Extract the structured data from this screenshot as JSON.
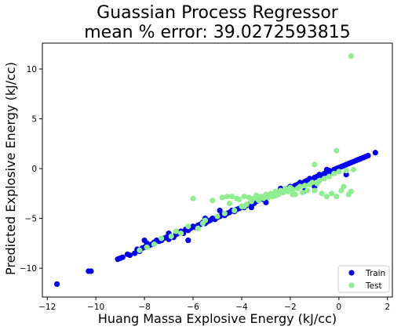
{
  "chart_data": {
    "type": "scatter",
    "title": [
      "Guassian Process Regressor",
      "mean % error: 39.0272593815"
    ],
    "xlabel": "Huang Massa Explosive Energy (kJ/cc)",
    "ylabel": "Predicted Explosive Energy (kJ/cc)",
    "xlim": [
      -12.2,
      2.2
    ],
    "ylim": [
      -12.9,
      12.6
    ],
    "xticks": [
      -12,
      -10,
      -8,
      -6,
      -4,
      -2,
      0,
      2
    ],
    "yticks": [
      -10,
      -5,
      0,
      5,
      10
    ],
    "grid": false,
    "legend_position": "lower-right",
    "series": [
      {
        "name": "Train",
        "color": "#0000ee",
        "points": [
          [
            -11.6,
            -11.6
          ],
          [
            -10.3,
            -10.3
          ],
          [
            -10.2,
            -10.3
          ],
          [
            -9.1,
            -9.1
          ],
          [
            -9.0,
            -9.0
          ],
          [
            -8.9,
            -8.9
          ],
          [
            -8.7,
            -8.6
          ],
          [
            -8.6,
            -8.7
          ],
          [
            -8.4,
            -8.5
          ],
          [
            -8.3,
            -8.1
          ],
          [
            -8.2,
            -8.3
          ],
          [
            -8.1,
            -8.0
          ],
          [
            -8.0,
            -7.9
          ],
          [
            -8.0,
            -7.2
          ],
          [
            -7.9,
            -7.5
          ],
          [
            -7.8,
            -7.7
          ],
          [
            -7.7,
            -7.6
          ],
          [
            -7.6,
            -7.4
          ],
          [
            -7.5,
            -7.2
          ],
          [
            -7.4,
            -7.3
          ],
          [
            -7.3,
            -7.2
          ],
          [
            -7.2,
            -7.0
          ],
          [
            -7.1,
            -6.9
          ],
          [
            -7.0,
            -7.1
          ],
          [
            -6.9,
            -6.8
          ],
          [
            -6.8,
            -6.9
          ],
          [
            -6.7,
            -6.6
          ],
          [
            -6.6,
            -6.5
          ],
          [
            -6.5,
            -6.3
          ],
          [
            -6.4,
            -6.5
          ],
          [
            -6.3,
            -6.1
          ],
          [
            -6.2,
            -6.2
          ],
          [
            -6.1,
            -6.0
          ],
          [
            -6.0,
            -5.8
          ],
          [
            -5.9,
            -5.9
          ],
          [
            -5.8,
            -5.7
          ],
          [
            -5.7,
            -5.6
          ],
          [
            -5.6,
            -5.4
          ],
          [
            -5.5,
            -5.5
          ],
          [
            -5.4,
            -5.3
          ],
          [
            -5.3,
            -5.2
          ],
          [
            -5.2,
            -5.0
          ],
          [
            -5.1,
            -5.1
          ],
          [
            -5.0,
            -4.9
          ],
          [
            -4.9,
            -4.8
          ],
          [
            -4.8,
            -4.6
          ],
          [
            -4.7,
            -4.7
          ],
          [
            -4.6,
            -4.5
          ],
          [
            -4.5,
            -4.4
          ],
          [
            -4.4,
            -4.2
          ],
          [
            -4.3,
            -4.3
          ],
          [
            -4.2,
            -4.1
          ],
          [
            -4.1,
            -4.0
          ],
          [
            -4.0,
            -3.8
          ],
          [
            -3.9,
            -3.9
          ],
          [
            -3.8,
            -3.7
          ],
          [
            -3.7,
            -3.6
          ],
          [
            -3.6,
            -3.4
          ],
          [
            -3.5,
            -3.5
          ],
          [
            -3.4,
            -3.3
          ],
          [
            -3.3,
            -3.2
          ],
          [
            -3.2,
            -3.0
          ],
          [
            -3.1,
            -3.1
          ],
          [
            -3.0,
            -2.9
          ],
          [
            -2.9,
            -2.8
          ],
          [
            -2.8,
            -2.6
          ],
          [
            -2.7,
            -2.7
          ],
          [
            -2.6,
            -2.5
          ],
          [
            -2.5,
            -2.4
          ],
          [
            -2.4,
            -2.2
          ],
          [
            -2.3,
            -2.3
          ],
          [
            -2.2,
            -2.1
          ],
          [
            -2.1,
            -2.0
          ],
          [
            -2.0,
            -1.8
          ],
          [
            -1.9,
            -1.9
          ],
          [
            -1.8,
            -1.7
          ],
          [
            -1.7,
            -1.6
          ],
          [
            -1.6,
            -1.4
          ],
          [
            -1.5,
            -1.5
          ],
          [
            -1.4,
            -1.3
          ],
          [
            -1.3,
            -1.2
          ],
          [
            -1.2,
            -1.0
          ],
          [
            -1.1,
            -1.1
          ],
          [
            -1.0,
            -0.9
          ],
          [
            -0.9,
            -0.8
          ],
          [
            -0.8,
            -0.6
          ],
          [
            -0.7,
            -0.7
          ],
          [
            -0.6,
            -0.5
          ],
          [
            -0.5,
            -0.4
          ],
          [
            -0.4,
            -0.2
          ],
          [
            -0.3,
            -0.3
          ],
          [
            -0.2,
            -0.1
          ],
          [
            -0.1,
            0.0
          ],
          [
            0.0,
            0.1
          ],
          [
            0.1,
            0.2
          ],
          [
            0.2,
            0.3
          ],
          [
            0.3,
            0.4
          ],
          [
            0.4,
            0.5
          ],
          [
            0.5,
            0.6
          ],
          [
            0.6,
            0.7
          ],
          [
            0.7,
            0.8
          ],
          [
            0.8,
            0.9
          ],
          [
            0.9,
            1.0
          ],
          [
            1.0,
            1.1
          ],
          [
            1.1,
            1.2
          ],
          [
            1.2,
            1.3
          ],
          [
            1.5,
            1.6
          ],
          [
            -6.2,
            -7.2
          ],
          [
            -7.0,
            -6.5
          ],
          [
            -5.5,
            -5.0
          ],
          [
            -3.6,
            -3.9
          ],
          [
            -2.4,
            -2.0
          ],
          [
            -1.4,
            -2.2
          ],
          [
            -1.0,
            -1.8
          ],
          [
            0.3,
            -0.6
          ],
          [
            -4.9,
            -4.2
          ],
          [
            -3.0,
            -3.4
          ],
          [
            -0.5,
            -0.1
          ]
        ]
      },
      {
        "name": "Test",
        "color": "#90ee90",
        "points": [
          [
            0.5,
            11.3
          ],
          [
            -0.1,
            1.8
          ],
          [
            -1.0,
            0.4
          ],
          [
            -8.2,
            -8.2
          ],
          [
            -7.9,
            -7.9
          ],
          [
            -7.3,
            -7.0
          ],
          [
            -6.7,
            -6.3
          ],
          [
            -6.2,
            -5.8
          ],
          [
            -6.0,
            -3.0
          ],
          [
            -5.8,
            -6.0
          ],
          [
            -5.5,
            -5.2
          ],
          [
            -5.2,
            -3.2
          ],
          [
            -5.0,
            -4.8
          ],
          [
            -4.8,
            -2.9
          ],
          [
            -4.7,
            -4.5
          ],
          [
            -4.6,
            -2.8
          ],
          [
            -4.5,
            -3.5
          ],
          [
            -4.4,
            -2.8
          ],
          [
            -4.3,
            -4.2
          ],
          [
            -4.2,
            -3.0
          ],
          [
            -4.0,
            -3.8
          ],
          [
            -3.9,
            -2.8
          ],
          [
            -3.8,
            -3.6
          ],
          [
            -3.7,
            -2.9
          ],
          [
            -3.6,
            -3.3
          ],
          [
            -3.5,
            -3.0
          ],
          [
            -3.4,
            -2.7
          ],
          [
            -3.3,
            -3.2
          ],
          [
            -3.2,
            -2.8
          ],
          [
            -3.1,
            -3.0
          ],
          [
            -3.0,
            -2.6
          ],
          [
            -2.9,
            -2.9
          ],
          [
            -2.8,
            -2.5
          ],
          [
            -2.7,
            -2.8
          ],
          [
            -2.6,
            -2.3
          ],
          [
            -2.5,
            -2.6
          ],
          [
            -2.4,
            -2.2
          ],
          [
            -2.3,
            -2.4
          ],
          [
            -2.2,
            -2.0
          ],
          [
            -2.1,
            -2.3
          ],
          [
            -2.0,
            -1.9
          ],
          [
            -1.9,
            -2.1
          ],
          [
            -1.8,
            -2.6
          ],
          [
            -1.7,
            -2.0
          ],
          [
            -1.6,
            -1.8
          ],
          [
            -1.5,
            -2.4
          ],
          [
            -1.4,
            -1.7
          ],
          [
            -1.3,
            -2.2
          ],
          [
            -1.2,
            -1.6
          ],
          [
            -1.1,
            -1.4
          ],
          [
            -1.0,
            -2.2
          ],
          [
            -0.9,
            -1.5
          ],
          [
            -0.8,
            -1.2
          ],
          [
            -0.7,
            -2.5
          ],
          [
            -0.6,
            -1.0
          ],
          [
            -0.5,
            -2.8
          ],
          [
            -0.4,
            -0.8
          ],
          [
            -0.3,
            -2.5
          ],
          [
            -0.2,
            -0.5
          ],
          [
            -0.1,
            -2.8
          ],
          [
            0.0,
            -0.3
          ],
          [
            0.1,
            -2.2
          ],
          [
            0.2,
            -1.8
          ],
          [
            0.4,
            -2.6
          ],
          [
            0.5,
            -2.3
          ],
          [
            0.3,
            -0.2
          ],
          [
            0.6,
            -0.1
          ],
          [
            -6.5,
            -6.5
          ],
          [
            -7.6,
            -7.6
          ],
          [
            -6.9,
            -6.8
          ],
          [
            -5.6,
            -5.5
          ],
          [
            -3.9,
            -3.8
          ],
          [
            -2.6,
            -2.7
          ],
          [
            -1.9,
            -2.6
          ],
          [
            -4.1,
            -3.1
          ]
        ]
      }
    ]
  }
}
